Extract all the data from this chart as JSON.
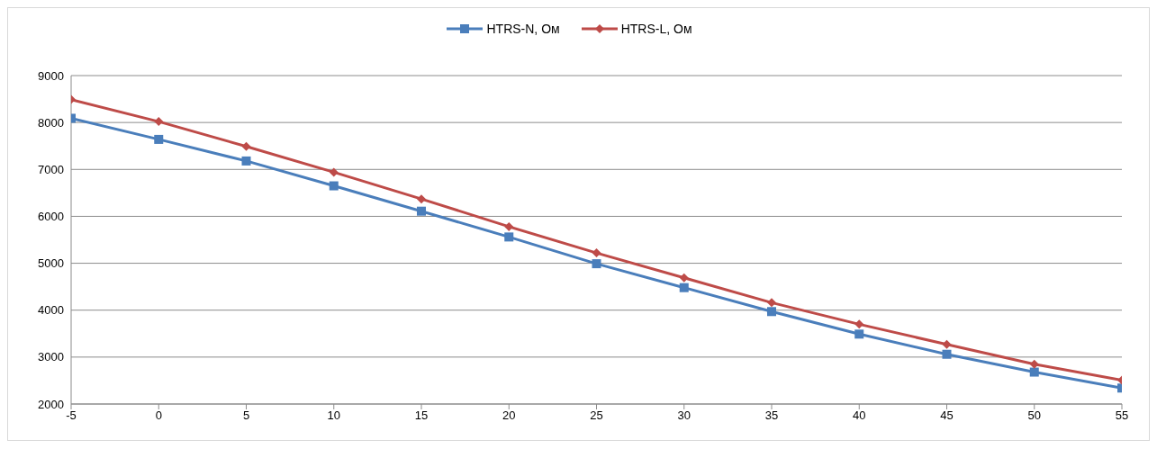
{
  "chart_data": {
    "type": "line",
    "x": [
      -5,
      0,
      5,
      10,
      15,
      20,
      25,
      30,
      35,
      40,
      45,
      50,
      55
    ],
    "series": [
      {
        "name": "HTRS-N, Ом",
        "color": "#4a7ebb",
        "marker": "square",
        "values": [
          8090,
          7640,
          7180,
          6650,
          6110,
          5560,
          4990,
          4480,
          3970,
          3490,
          3060,
          2680,
          2340
        ]
      },
      {
        "name": "HTRS-L, Ом",
        "color": "#be4b48",
        "marker": "diamond",
        "values": [
          8490,
          8020,
          7490,
          6940,
          6370,
          5780,
          5220,
          4690,
          4160,
          3700,
          3270,
          2850,
          2510
        ]
      }
    ],
    "xlim": [
      -5,
      55
    ],
    "xticks": [
      -5,
      0,
      5,
      10,
      15,
      20,
      25,
      30,
      35,
      40,
      45,
      50,
      55
    ],
    "ylim": [
      2000,
      9000
    ],
    "yticks": [
      2000,
      3000,
      4000,
      5000,
      6000,
      7000,
      8000,
      9000
    ],
    "grid": "y",
    "legend": "top"
  }
}
